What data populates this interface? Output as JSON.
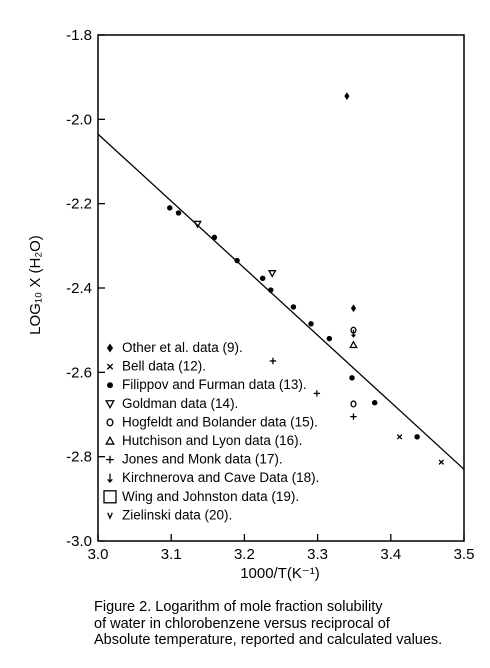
{
  "chart_data": {
    "type": "scatter",
    "xlabel": "1000/T(K⁻¹)",
    "ylabel": "LOG₁₀ X (H₂O)",
    "xlim": [
      3.0,
      3.5
    ],
    "ylim": [
      -3.0,
      -1.8
    ],
    "x_ticks": [
      {
        "value": 3.0,
        "label": "3.0"
      },
      {
        "value": 3.1,
        "label": "3.1"
      },
      {
        "value": 3.2,
        "label": "3.2"
      },
      {
        "value": 3.3,
        "label": "3.3"
      },
      {
        "value": 3.4,
        "label": "3.4"
      },
      {
        "value": 3.5,
        "label": "3.5"
      }
    ],
    "y_ticks": [
      {
        "value": -1.8,
        "label": "-1.8"
      },
      {
        "value": -2.0,
        "label": "-2.0"
      },
      {
        "value": -2.2,
        "label": "-2.2"
      },
      {
        "value": -2.4,
        "label": "-2.4"
      },
      {
        "value": -2.6,
        "label": "-2.6"
      },
      {
        "value": -2.8,
        "label": "-2.8"
      },
      {
        "value": -3.0,
        "label": "-3.0"
      }
    ],
    "fit_line": {
      "x": [
        3.0,
        3.5
      ],
      "y": [
        -2.035,
        -2.83
      ]
    },
    "series": [
      {
        "name": "Other et al. data (9).",
        "marker": "diamond",
        "points": [
          [
            3.34,
            -1.945
          ],
          [
            3.349,
            -2.448
          ]
        ]
      },
      {
        "name": "Bell data (12).",
        "marker": "x",
        "points": [
          [
            3.412,
            -2.753
          ],
          [
            3.469,
            -2.813
          ]
        ]
      },
      {
        "name": "Filippov and Furman data (13).",
        "marker": "dot",
        "points": [
          [
            3.098,
            -2.21
          ],
          [
            3.11,
            -2.222
          ],
          [
            3.159,
            -2.28
          ],
          [
            3.19,
            -2.335
          ],
          [
            3.225,
            -2.377
          ],
          [
            3.236,
            -2.405
          ],
          [
            3.267,
            -2.445
          ],
          [
            3.291,
            -2.485
          ],
          [
            3.316,
            -2.52
          ],
          [
            3.347,
            -2.613
          ],
          [
            3.378,
            -2.672
          ],
          [
            3.436,
            -2.753
          ]
        ]
      },
      {
        "name": "Goldman data (14).",
        "marker": "triangle-down",
        "points": [
          [
            3.136,
            -2.248
          ],
          [
            3.238,
            -2.365
          ]
        ]
      },
      {
        "name": "Hogfeldt and Bolander data (15).",
        "marker": "circle",
        "points": [
          [
            3.349,
            -2.5
          ],
          [
            3.349,
            -2.675
          ]
        ]
      },
      {
        "name": "Hutchison and Lyon data (16).",
        "marker": "triangle-up",
        "points": [
          [
            3.349,
            -2.535
          ]
        ]
      },
      {
        "name": "Jones and Monk data (17).",
        "marker": "plus",
        "points": [
          [
            3.239,
            -2.573
          ],
          [
            3.299,
            -2.65
          ],
          [
            3.349,
            -2.705
          ]
        ]
      },
      {
        "name": "Kirchnerova and Cave Data (18).",
        "marker": "down-arrow",
        "points": [
          [
            3.349,
            -2.508
          ]
        ]
      },
      {
        "name": "Wing and Johnston data (19).",
        "marker": "square",
        "points": []
      },
      {
        "name": "Zielinski data (20).",
        "marker": "v",
        "points": []
      }
    ],
    "legend": {
      "placement": "bottom-left"
    }
  },
  "legend_items": [
    {
      "symbol": "♦",
      "text": "Other et al. data (9)."
    },
    {
      "symbol": "x",
      "text": "Bell data (12)."
    },
    {
      "symbol": "●",
      "text": "Filippov and Furman data (13)."
    },
    {
      "symbol": "▽",
      "text": "Goldman data (14)."
    },
    {
      "symbol": "O",
      "text": "Hogfeldt and Bolander data (15)."
    },
    {
      "symbol": "△",
      "text": "Hutchison and Lyon data (16)."
    },
    {
      "symbol": "+",
      "text": "Jones and Monk data (17)."
    },
    {
      "symbol": "↓",
      "text": "Kirchnerova and Cave Data (18)."
    },
    {
      "symbol": "□",
      "text": "Wing and Johnston data (19)."
    },
    {
      "symbol": "v",
      "text": "Zielinski data (20)."
    }
  ],
  "caption": {
    "line1": "Figure 2. Logarithm of mole fraction solubility",
    "line2": "of water in chlorobenzene versus reciprocal of",
    "line3": "Absolute temperature, reported and calculated values."
  }
}
